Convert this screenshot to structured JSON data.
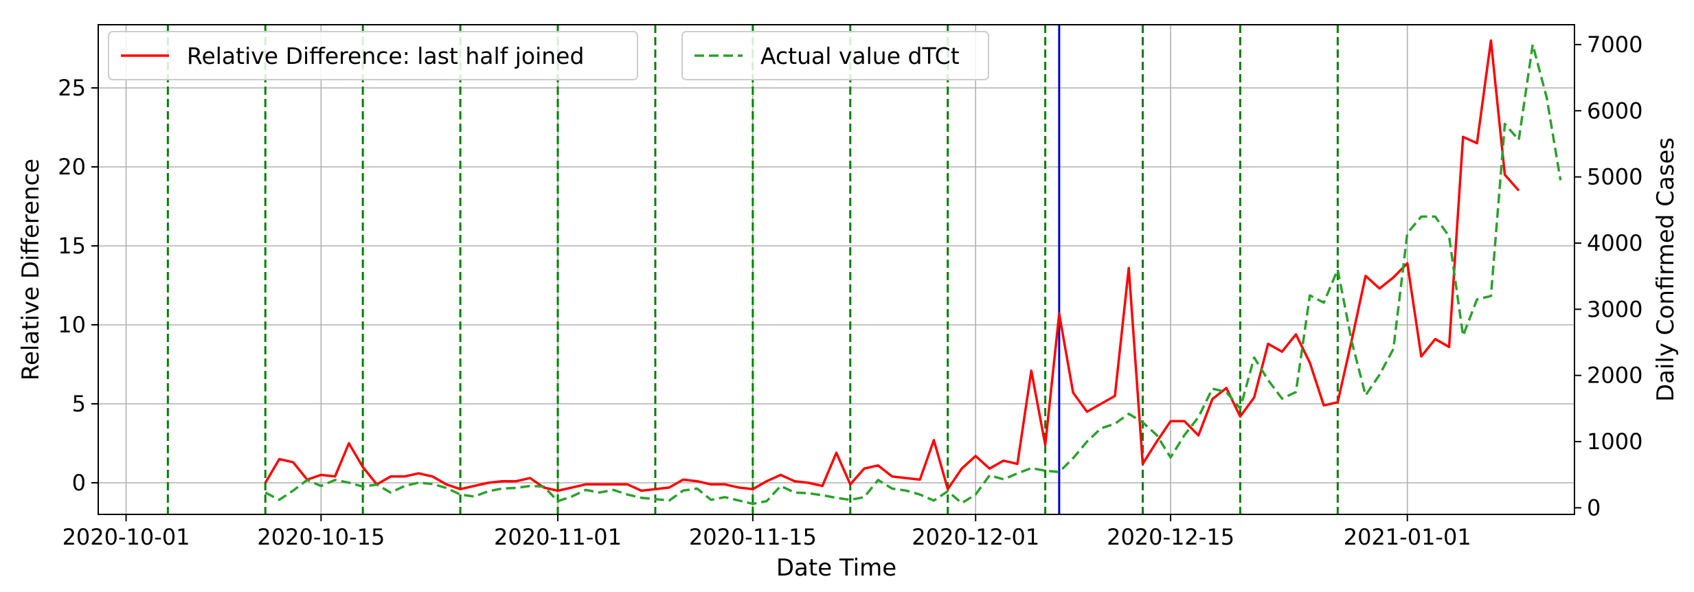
{
  "chart_data": {
    "type": "line",
    "title": "",
    "xlabel": "Date Time",
    "ylabel": "Relative Difference",
    "y2label": "Daily Confirmed Cases",
    "xlim": [
      "2020-09-29",
      "2021-01-13"
    ],
    "ylim": [
      -2,
      29
    ],
    "y2lim": [
      -100,
      7300
    ],
    "grid": true,
    "legend_placement": "top-left",
    "x_ticks": [
      "2020-10-01",
      "2020-10-15",
      "2020-11-01",
      "2020-11-15",
      "2020-12-01",
      "2020-12-15",
      "2021-01-01"
    ],
    "y_ticks": [
      0,
      5,
      10,
      15,
      20,
      25
    ],
    "y2_ticks": [
      0,
      1000,
      2000,
      3000,
      4000,
      5000,
      6000,
      7000
    ],
    "vertical_markers": {
      "green_dashed": [
        "2020-10-04",
        "2020-10-11",
        "2020-10-18",
        "2020-10-25",
        "2020-11-01",
        "2020-11-08",
        "2020-11-15",
        "2020-11-22",
        "2020-11-29",
        "2020-12-06",
        "2020-12-13",
        "2020-12-20",
        "2020-12-27"
      ],
      "blue_solid": [
        "2020-12-07"
      ]
    },
    "series": [
      {
        "name": "Relative Difference: last half joined",
        "axis": "left",
        "color": "#ff0000",
        "style": "solid",
        "start": "2020-10-11",
        "values": [
          0.0,
          1.5,
          1.3,
          0.2,
          0.5,
          0.4,
          2.5,
          1.0,
          -0.1,
          0.4,
          0.4,
          0.6,
          0.4,
          -0.1,
          -0.4,
          -0.2,
          0.0,
          0.1,
          0.1,
          0.3,
          -0.3,
          -0.5,
          -0.3,
          -0.1,
          -0.1,
          -0.1,
          -0.1,
          -0.5,
          -0.4,
          -0.3,
          0.2,
          0.1,
          -0.1,
          -0.1,
          -0.3,
          -0.4,
          0.1,
          0.5,
          0.1,
          0.0,
          -0.2,
          1.9,
          -0.1,
          0.9,
          1.1,
          0.4,
          0.3,
          0.2,
          2.7,
          -0.4,
          0.9,
          1.7,
          0.9,
          1.4,
          1.2,
          7.1,
          2.4,
          10.7,
          5.7,
          4.5,
          5.0,
          5.5,
          13.6,
          1.2,
          2.6,
          3.9,
          3.9,
          3.0,
          5.3,
          6.0,
          4.2,
          5.4,
          8.8,
          8.3,
          9.4,
          7.6,
          4.9,
          5.1,
          9.0,
          13.1,
          12.3,
          13.0,
          13.9,
          8.0,
          9.1,
          8.6,
          21.9,
          21.5,
          28.0,
          19.5,
          18.5
        ]
      },
      {
        "name": "Actual value dTCt",
        "axis": "right",
        "color": "#2ca02c",
        "style": "dashed",
        "start": "2020-10-11",
        "values": [
          230,
          120,
          260,
          420,
          330,
          420,
          380,
          320,
          350,
          230,
          330,
          380,
          360,
          300,
          200,
          170,
          250,
          290,
          300,
          330,
          320,
          100,
          170,
          270,
          230,
          270,
          200,
          150,
          130,
          110,
          260,
          290,
          120,
          160,
          110,
          60,
          100,
          330,
          230,
          220,
          190,
          150,
          120,
          160,
          420,
          290,
          260,
          200,
          110,
          250,
          70,
          200,
          490,
          430,
          520,
          600,
          560,
          540,
          750,
          1000,
          1200,
          1270,
          1420,
          1290,
          1100,
          760,
          1100,
          1370,
          1800,
          1750,
          1500,
          2270,
          1930,
          1650,
          1750,
          3210,
          3100,
          3600,
          2520,
          1700,
          2010,
          2400,
          4150,
          4400,
          4400,
          4100,
          2600,
          3150,
          3200,
          5800,
          5560,
          7000,
          6200,
          4950
        ]
      }
    ]
  }
}
